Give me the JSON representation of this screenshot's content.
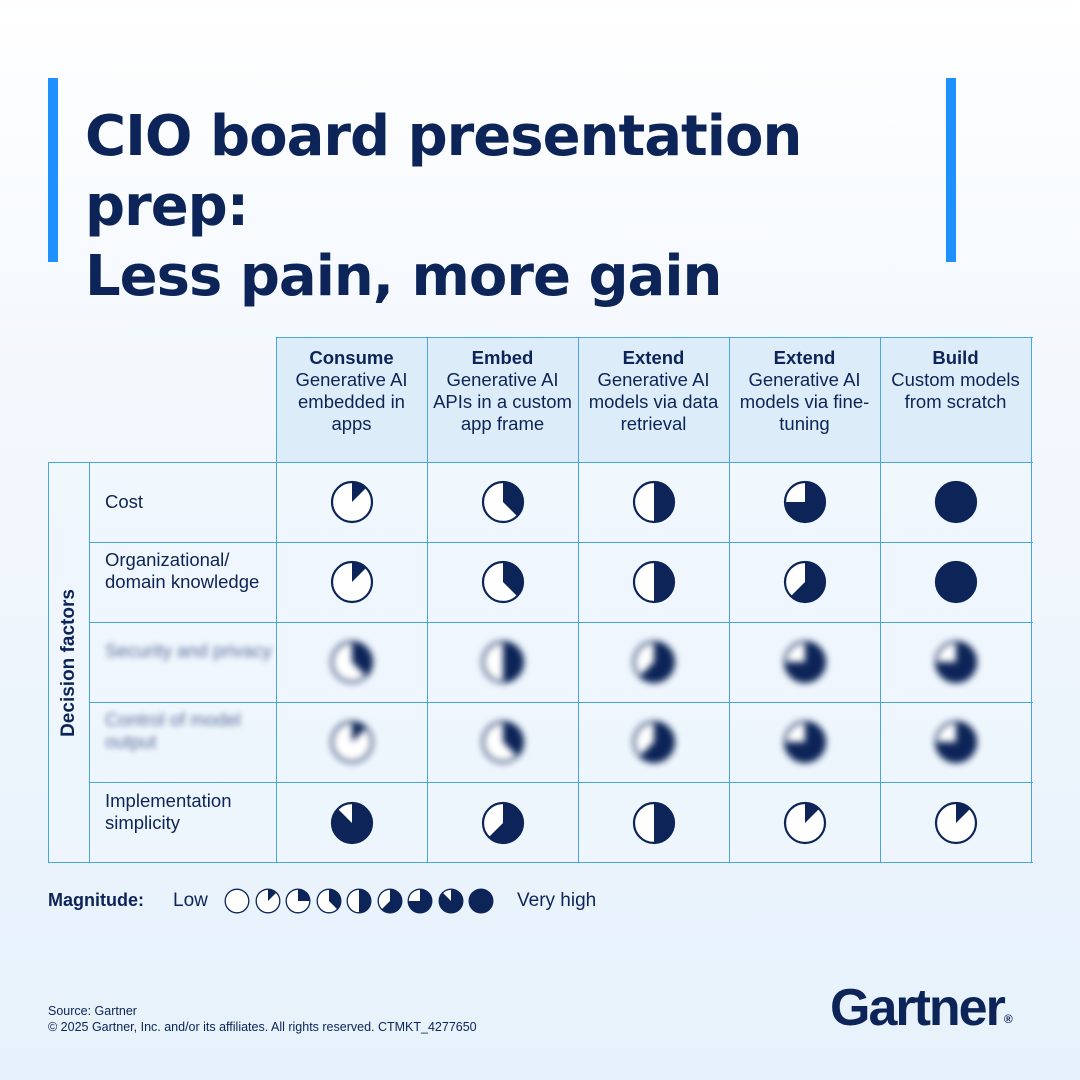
{
  "title": {
    "line1": "CIO board presentation prep:",
    "line2": "Less pain, more gain"
  },
  "columns": [
    {
      "head": "Consume",
      "sub": "Generative AI embedded in apps"
    },
    {
      "head": "Embed",
      "sub": "Generative AI APIs in a custom app frame"
    },
    {
      "head": "Extend",
      "sub": "Generative AI models via data retrieval"
    },
    {
      "head": "Extend",
      "sub": "Generative AI models via fine-tuning"
    },
    {
      "head": "Build",
      "sub": "Custom models from scratch"
    }
  ],
  "side_label": "Decision factors",
  "rows": [
    {
      "label": "Cost",
      "levels": [
        1,
        3,
        4,
        6,
        8
      ],
      "blurred": false
    },
    {
      "label": "Organizational/ domain knowledge",
      "levels": [
        1,
        3,
        4,
        5,
        8
      ],
      "blurred": false
    },
    {
      "label": "Security and privacy",
      "levels": [
        3,
        4,
        5,
        6,
        6
      ],
      "blurred": true
    },
    {
      "label": "Control of model output",
      "levels": [
        1,
        3,
        5,
        6,
        6
      ],
      "blurred": true
    },
    {
      "label": "Implementation simplicity",
      "levels": [
        7,
        5,
        4,
        1,
        1
      ],
      "blurred": false
    }
  ],
  "legend": {
    "label": "Magnitude:",
    "low": "Low",
    "high": "Very high",
    "steps": [
      0,
      1,
      2,
      3,
      4,
      5,
      6,
      7,
      8
    ]
  },
  "colors": {
    "accent": "#1e90ff",
    "navy": "#0c2457",
    "grid": "#4aa6d8",
    "header_bg": "#dcedf9"
  },
  "footer": {
    "source": "Source: Gartner",
    "copyright": "© 2025 Gartner, Inc. and/or its affiliates. All rights reserved. CTMKT_4277650"
  },
  "logo": "Gartner"
}
